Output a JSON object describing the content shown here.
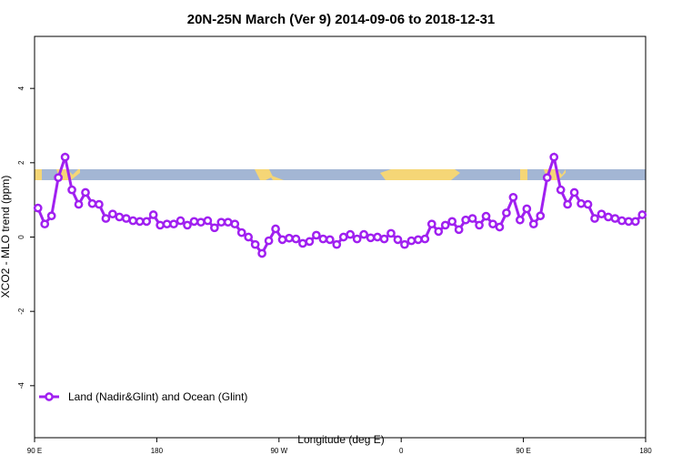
{
  "chart_data": {
    "type": "line",
    "title": "20N-25N March (Ver 9)   2014-09-06 to 2018-12-31",
    "x_label": "Longitude (deg E)",
    "y_label": "XCO2 - MLO trend (ppm)",
    "x": [
      92.5,
      97.5,
      102.5,
      107.5,
      112.5,
      117.5,
      122.5,
      127.5,
      132.5,
      137.5,
      142.5,
      147.5,
      152.5,
      157.5,
      162.5,
      167.5,
      172.5,
      177.5,
      182.5,
      187.5,
      192.5,
      197.5,
      202.5,
      207.5,
      212.5,
      217.5,
      222.5,
      227.5,
      232.5,
      237.5,
      242.5,
      247.5,
      252.5,
      257.5,
      262.5,
      267.5,
      272.5,
      277.5,
      282.5,
      287.5,
      292.5,
      297.5,
      302.5,
      307.5,
      312.5,
      317.5,
      322.5,
      327.5,
      332.5,
      337.5,
      342.5,
      347.5,
      352.5,
      357.5,
      362.5,
      367.5,
      372.5,
      377.5,
      382.5,
      387.5,
      392.5,
      397.5,
      402.5,
      407.5,
      412.5,
      417.5,
      422.5,
      427.5,
      432.5,
      437.5,
      442.5,
      447.5,
      452.5,
      457.5,
      462.5,
      467.5,
      472.5,
      477.5,
      482.5,
      487.5,
      492.5,
      497.5,
      502.5,
      507.5,
      512.5,
      517.5,
      522.5,
      527.5,
      532.5,
      537.5
    ],
    "series": [
      {
        "name": "Land (Nadir&Glint) and Ocean (Glint)",
        "color": "#a020f0",
        "values": [
          0.78,
          0.35,
          0.57,
          1.6,
          2.15,
          1.27,
          0.88,
          1.2,
          0.9,
          0.88,
          0.5,
          0.62,
          0.54,
          0.5,
          0.44,
          0.42,
          0.42,
          0.6,
          0.32,
          0.35,
          0.35,
          0.44,
          0.32,
          0.42,
          0.4,
          0.44,
          0.25,
          0.4,
          0.4,
          0.35,
          0.12,
          0.0,
          -0.2,
          -0.44,
          -0.1,
          0.22,
          -0.07,
          -0.03,
          -0.05,
          -0.17,
          -0.12,
          0.05,
          -0.05,
          -0.07,
          -0.2,
          0.0,
          0.07,
          -0.05,
          0.07,
          -0.02,
          0.0,
          -0.05,
          0.1,
          -0.07,
          -0.2,
          -0.1,
          -0.07,
          -0.05,
          0.35,
          0.15,
          0.32,
          0.42,
          0.2,
          0.46,
          0.5,
          0.32,
          0.56,
          0.35,
          0.27,
          0.65,
          1.07,
          0.46,
          0.76,
          0.35,
          0.57,
          1.6,
          2.15,
          1.27,
          0.88,
          1.2,
          0.9,
          0.88,
          0.5,
          0.62,
          0.54,
          0.5,
          0.44,
          0.42,
          0.42,
          0.6
        ]
      }
    ],
    "xlim": [
      90,
      540
    ],
    "xticks": [
      {
        "value": 90,
        "label": "90 E"
      },
      {
        "value": 180,
        "label": "180"
      },
      {
        "value": 270,
        "label": "90 W"
      },
      {
        "value": 360,
        "label": "0"
      },
      {
        "value": 450,
        "label": "90 E"
      },
      {
        "value": 540,
        "label": "180"
      }
    ],
    "ylim": [
      -5.4,
      5.4
    ],
    "yticks": [
      -4,
      -2,
      0,
      2,
      4
    ],
    "legend_position": "bottom-left"
  }
}
